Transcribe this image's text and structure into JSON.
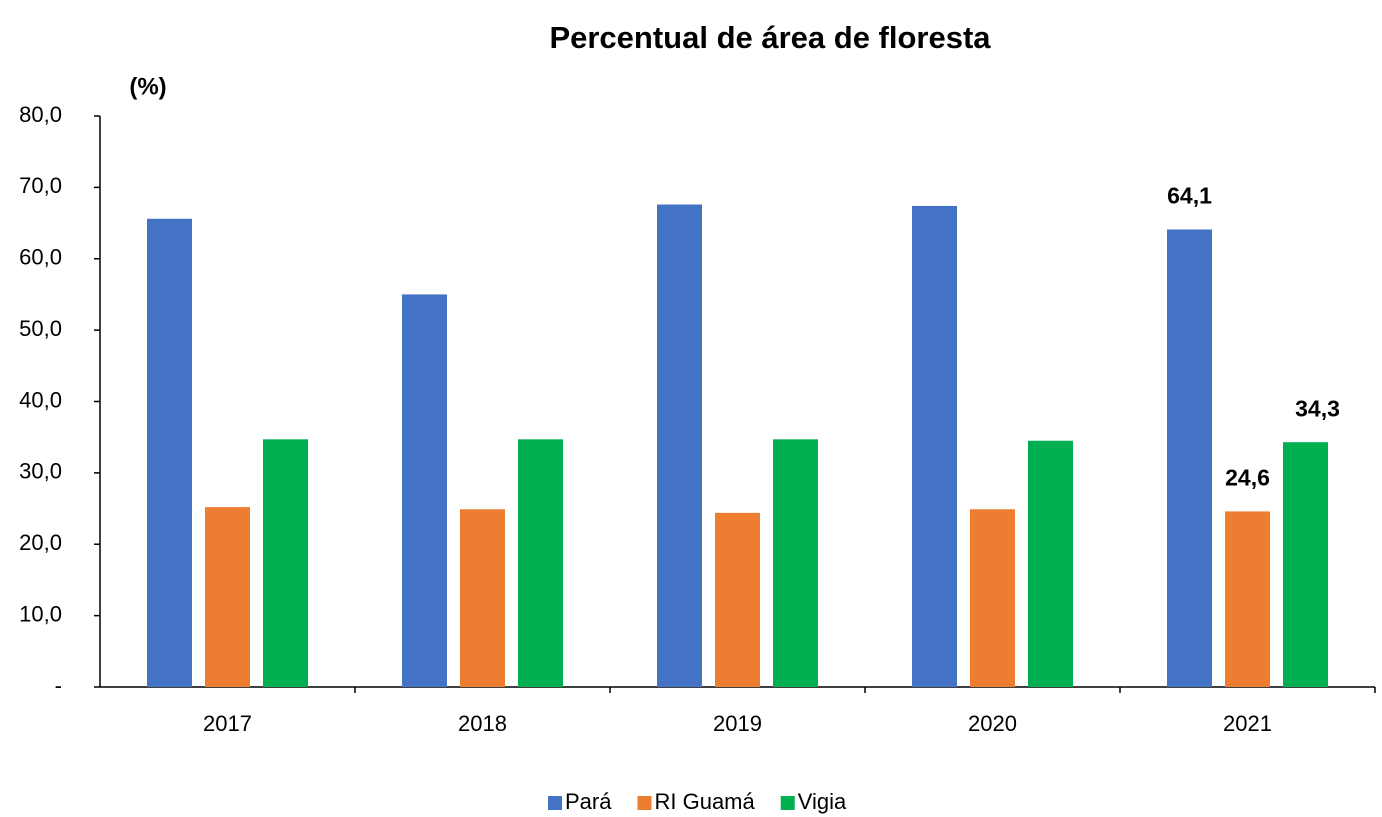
{
  "chart_data": {
    "type": "bar",
    "title": "Percentual de área de floresta",
    "y_axis_label": "(%)",
    "categories": [
      "2017",
      "2018",
      "2019",
      "2020",
      "2021"
    ],
    "series": [
      {
        "name": "Pará",
        "color": "#4472c4",
        "values": [
          65.6,
          55.0,
          67.6,
          67.4,
          64.1
        ],
        "value_labels": [
          null,
          null,
          null,
          null,
          "64,1"
        ]
      },
      {
        "name": "RI Guamá",
        "color": "#ed7d31",
        "values": [
          25.2,
          24.9,
          24.4,
          24.9,
          24.6
        ],
        "value_labels": [
          null,
          null,
          null,
          null,
          "24,6"
        ]
      },
      {
        "name": "Vigia",
        "color": "#00b050",
        "values": [
          34.7,
          34.7,
          34.7,
          34.5,
          34.3
        ],
        "value_labels": [
          null,
          null,
          null,
          null,
          "34,3"
        ]
      }
    ],
    "ylim": [
      0,
      80
    ],
    "yticks": [
      {
        "value": 0,
        "label": "-"
      },
      {
        "value": 10,
        "label": "10,0"
      },
      {
        "value": 20,
        "label": "20,0"
      },
      {
        "value": 30,
        "label": "30,0"
      },
      {
        "value": 40,
        "label": "40,0"
      },
      {
        "value": 50,
        "label": "50,0"
      },
      {
        "value": 60,
        "label": "60,0"
      },
      {
        "value": 70,
        "label": "70,0"
      },
      {
        "value": 80,
        "label": "80,0"
      }
    ],
    "grid": false,
    "legend": "bottom"
  }
}
